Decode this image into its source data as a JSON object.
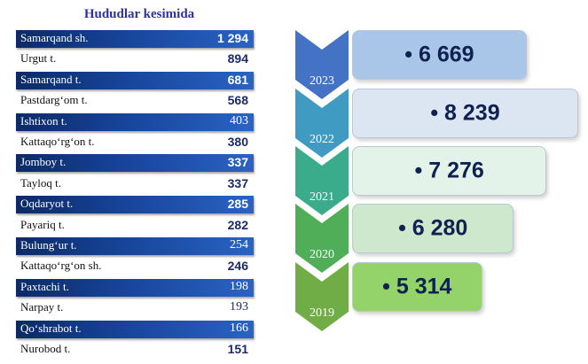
{
  "title": "Hududlar kesimida",
  "chart_data": [
    {
      "type": "table",
      "rows": [
        {
          "name": "Samarqand sh.",
          "value": "1 294",
          "style": "dark"
        },
        {
          "name": "Urgut t.",
          "value": "894",
          "style": "light"
        },
        {
          "name": "Samarqand t.",
          "value": "681",
          "style": "dark"
        },
        {
          "name": "Pastdarg‘om t.",
          "value": "568",
          "style": "light"
        },
        {
          "name": "Ishtixon t.",
          "value": "403",
          "style": "dark",
          "thin": true
        },
        {
          "name": "Kattaqo‘rg‘on t.",
          "value": "380",
          "style": "light"
        },
        {
          "name": "Jomboy t.",
          "value": "337",
          "style": "dark"
        },
        {
          "name": "Tayloq t.",
          "value": "337",
          "style": "light"
        },
        {
          "name": "Oqdaryot t.",
          "value": "285",
          "style": "dark"
        },
        {
          "name": "Payariq t.",
          "value": "282",
          "style": "light"
        },
        {
          "name": "Bulung‘ur t.",
          "value": "254",
          "style": "dark",
          "thin": true
        },
        {
          "name": "Kattaqo‘rg‘on sh.",
          "value": "246",
          "style": "light"
        },
        {
          "name": "Paxtachi t.",
          "value": "198",
          "style": "dark",
          "thin": true
        },
        {
          "name": "Narpay t.",
          "value": "193",
          "style": "light",
          "thin": true
        },
        {
          "name": "Qo‘shrabot t.",
          "value": "166",
          "style": "dark",
          "thin": true
        },
        {
          "name": "Nurobod t.",
          "value": "151",
          "style": "light"
        }
      ]
    },
    {
      "type": "bar",
      "categories": [
        "2023",
        "2022",
        "2021",
        "2020",
        "2019"
      ],
      "values": [
        6669,
        8239,
        7276,
        6280,
        5314
      ],
      "labels": [
        "• 6 669",
        "• 8 239",
        "• 7 276",
        "• 6 280",
        "• 5 314"
      ],
      "chevron_colors": [
        "#4472c4",
        "#3f9bc1",
        "#3aac8c",
        "#50ae58",
        "#70ad47"
      ],
      "box_colors": [
        "#a9c6e9",
        "#dce5f2",
        "#e3f3ea",
        "#cde8cc",
        "#93d36a"
      ]
    }
  ]
}
